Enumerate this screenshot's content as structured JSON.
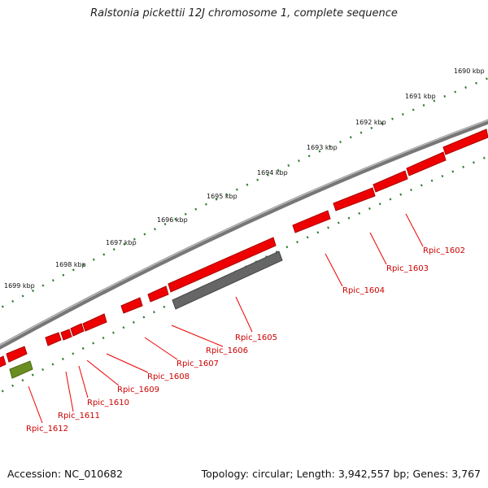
{
  "title": "Ralstonia pickettii 12J chromosome 1, complete sequence",
  "accession": "Accession: NC_010682",
  "summary": "Topology: circular; Length: 3,942,557 bp; Genes: 3,767",
  "colors": {
    "gene_forward": "#ee0000",
    "gene_highlight": "#666666",
    "gene_rna": "#6b8e23",
    "backbone": "#888888",
    "tick": "#2e7d32",
    "label": "#cc0000"
  },
  "ticks": [
    "1690 kbp",
    "1691 kbp",
    "1692 kbp",
    "1693 kbp",
    "1694 kbp",
    "1695 kbp",
    "1696 kbp",
    "1697 kbp",
    "1698 kbp",
    "1699 kbp"
  ],
  "genes": [
    "Rpic_1602",
    "Rpic_1603",
    "Rpic_1604",
    "Rpic_1605",
    "Rpic_1606",
    "Rpic_1607",
    "Rpic_1608",
    "Rpic_1609",
    "Rpic_1610",
    "Rpic_1611",
    "Rpic_1612"
  ]
}
